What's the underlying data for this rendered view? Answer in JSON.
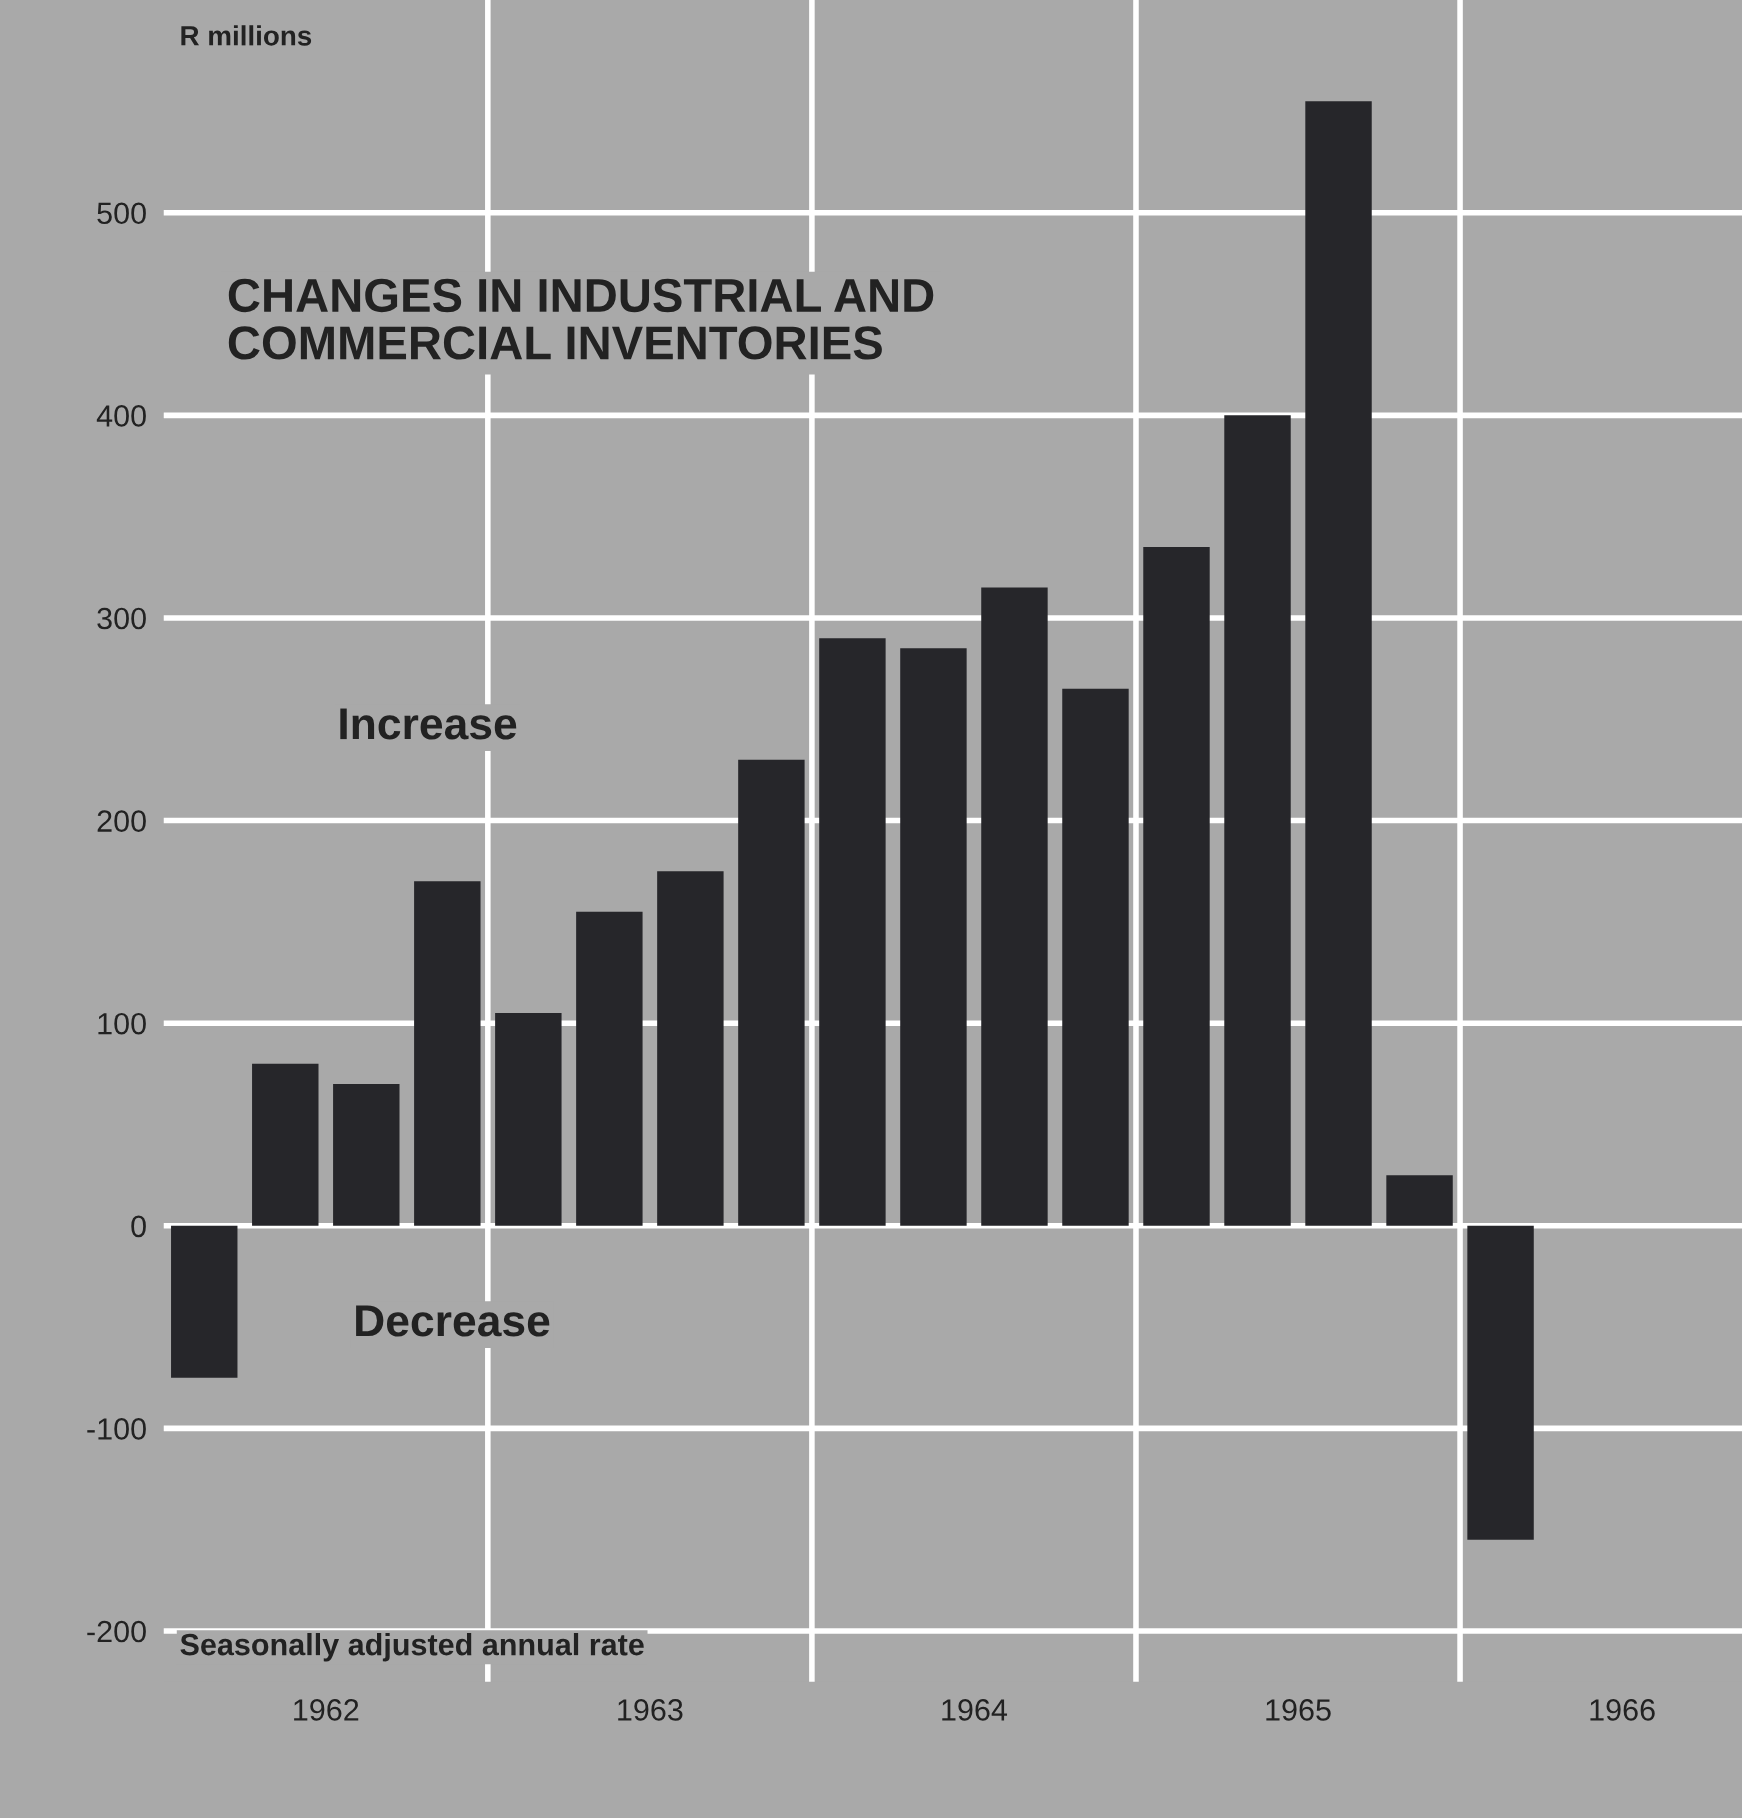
{
  "chart_data": {
    "type": "bar",
    "title": "CHANGES IN INDUSTRIAL AND\nCOMMERCIAL INVENTORIES",
    "ylabel": "R millions",
    "x": [
      1962.125,
      1962.375,
      1962.625,
      1962.875,
      1963.125,
      1963.375,
      1963.625,
      1963.875,
      1964.125,
      1964.375,
      1964.625,
      1964.875,
      1965.125,
      1965.375,
      1965.625,
      1965.875,
      1966.125
    ],
    "values": [
      -75,
      80,
      70,
      170,
      105,
      155,
      175,
      230,
      290,
      285,
      315,
      265,
      335,
      400,
      555,
      25,
      -155
    ],
    "color": "#26262a",
    "xlim": [
      1962,
      1966.87
    ],
    "xticks": [
      {
        "value": 1962.5,
        "label": "1962"
      },
      {
        "value": 1963.5,
        "label": "1963"
      },
      {
        "value": 1964.5,
        "label": "1964"
      },
      {
        "value": 1965.5,
        "label": "1965"
      },
      {
        "value": 1966.5,
        "label": "1966"
      }
    ],
    "ylim": [
      -225,
      605
    ],
    "yticks": [
      -200,
      -100,
      0,
      100,
      200,
      300,
      400,
      500
    ],
    "grid": "y",
    "ref_lines": [
      {
        "axis": "x",
        "value": 1963,
        "color": "#ffffff"
      },
      {
        "axis": "x",
        "value": 1964,
        "color": "#ffffff"
      },
      {
        "axis": "x",
        "value": 1965,
        "color": "#ffffff"
      },
      {
        "axis": "x",
        "value": 1966,
        "color": "#ffffff"
      }
    ],
    "annotations": [
      "Increase",
      "Decrease",
      "Seasonally adjusted annual rate"
    ]
  }
}
